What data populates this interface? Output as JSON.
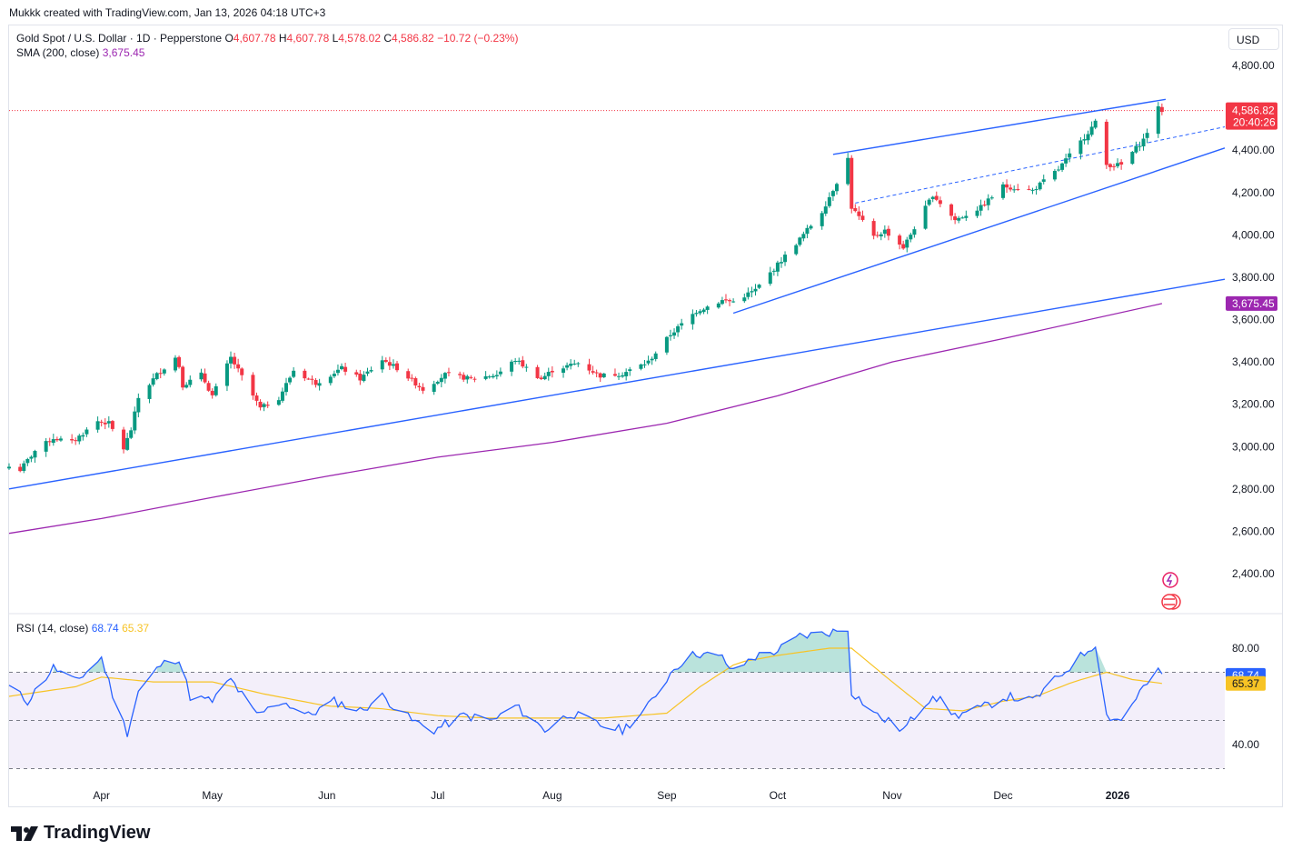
{
  "header": {
    "credit": "Mukkk created with TradingView.com, Jan 13, 2026 04:18 UTC+3"
  },
  "legend": {
    "symbol": "Gold Spot / U.S. Dollar · 1D · Pepperstone",
    "o_key": "O",
    "o_val": "4,607.78",
    "h_key": "H",
    "h_val": "4,607.78",
    "l_key": "L",
    "l_val": "4,578.02",
    "c_key": "C",
    "c_val": "4,586.82",
    "change": "−10.72 (−0.23%)",
    "sma_label": "SMA (200, close)",
    "sma_value": "3,675.45",
    "rsi_label": "RSI (14, close)",
    "rsi_value": "68.74",
    "rsi_ma_value": "65.37"
  },
  "currency": "USD",
  "brand": {
    "name": "TradingView"
  },
  "colors": {
    "up": "#089981",
    "down": "#f23645",
    "trendline": "#2962ff",
    "sma": "#9c27b0",
    "rsi": "#2962ff",
    "rsi_ma": "#f7c325",
    "rsi_band": "#f3effa"
  },
  "chart_data": [
    {
      "type": "candlestick",
      "title": "Gold Spot / U.S. Dollar · 1D · Pepperstone",
      "ylim": [
        2200,
        4900
      ],
      "yticks": [
        2400,
        2600,
        2800,
        3000,
        3200,
        3400,
        3600,
        3800,
        4000,
        4200,
        4400,
        4600,
        4800
      ],
      "ytick_labels": [
        "2,400.00",
        "2,600.00",
        "2,800.00",
        "3,000.00",
        "3,200.00",
        "3,400.00",
        "3,600.00",
        "3,800.00",
        "4,000.00",
        "4,200.00",
        "4,400.00",
        "4,600.00",
        "4,800.00"
      ],
      "x_start": "2025-03-07",
      "x_end": "2026-01-30",
      "x_ticks": [
        {
          "label": "Apr",
          "date": "2025-04-01"
        },
        {
          "label": "May",
          "date": "2025-05-01"
        },
        {
          "label": "Jun",
          "date": "2025-06-01"
        },
        {
          "label": "Jul",
          "date": "2025-07-01"
        },
        {
          "label": "Aug",
          "date": "2025-08-01"
        },
        {
          "label": "Sep",
          "date": "2025-09-01"
        },
        {
          "label": "Oct",
          "date": "2025-10-01"
        },
        {
          "label": "Nov",
          "date": "2025-11-01"
        },
        {
          "label": "Dec",
          "date": "2025-12-01"
        },
        {
          "label": "2026",
          "date": "2026-01-01"
        }
      ],
      "close_path": [
        [
          "2025-03-07",
          2905
        ],
        [
          "2025-03-10",
          2890
        ],
        [
          "2025-03-14",
          2980
        ],
        [
          "2025-03-19",
          3040
        ],
        [
          "2025-03-24",
          3020
        ],
        [
          "2025-03-31",
          3120
        ],
        [
          "2025-04-03",
          3110
        ],
        [
          "2025-04-07",
          2990
        ],
        [
          "2025-04-09",
          3080
        ],
        [
          "2025-04-11",
          3230
        ],
        [
          "2025-04-16",
          3340
        ],
        [
          "2025-04-21",
          3420
        ],
        [
          "2025-04-22",
          3380
        ],
        [
          "2025-04-23",
          3290
        ],
        [
          "2025-04-28",
          3340
        ],
        [
          "2025-05-01",
          3240
        ],
        [
          "2025-05-06",
          3420
        ],
        [
          "2025-05-09",
          3330
        ],
        [
          "2025-05-14",
          3180
        ],
        [
          "2025-05-19",
          3230
        ],
        [
          "2025-05-23",
          3360
        ],
        [
          "2025-05-29",
          3300
        ],
        [
          "2025-06-05",
          3370
        ],
        [
          "2025-06-10",
          3320
        ],
        [
          "2025-06-16",
          3410
        ],
        [
          "2025-06-20",
          3370
        ],
        [
          "2025-06-27",
          3270
        ],
        [
          "2025-07-03",
          3340
        ],
        [
          "2025-07-10",
          3320
        ],
        [
          "2025-07-17",
          3340
        ],
        [
          "2025-07-22",
          3410
        ],
        [
          "2025-07-29",
          3320
        ],
        [
          "2025-08-01",
          3360
        ],
        [
          "2025-08-08",
          3395
        ],
        [
          "2025-08-14",
          3335
        ],
        [
          "2025-08-20",
          3345
        ],
        [
          "2025-08-27",
          3400
        ],
        [
          "2025-09-02",
          3530
        ],
        [
          "2025-09-09",
          3640
        ],
        [
          "2025-09-16",
          3690
        ],
        [
          "2025-09-19",
          3685
        ],
        [
          "2025-09-25",
          3740
        ],
        [
          "2025-10-01",
          3860
        ],
        [
          "2025-10-07",
          3980
        ],
        [
          "2025-10-13",
          4110
        ],
        [
          "2025-10-17",
          4250
        ],
        [
          "2025-10-20",
          4360
        ],
        [
          "2025-10-21",
          4130
        ],
        [
          "2025-10-27",
          3990
        ],
        [
          "2025-10-30",
          4020
        ],
        [
          "2025-11-04",
          3940
        ],
        [
          "2025-11-12",
          4190
        ],
        [
          "2025-11-18",
          4070
        ],
        [
          "2025-11-25",
          4130
        ],
        [
          "2025-12-01",
          4230
        ],
        [
          "2025-12-09",
          4210
        ],
        [
          "2025-12-16",
          4310
        ],
        [
          "2025-12-22",
          4440
        ],
        [
          "2025-12-26",
          4530
        ],
        [
          "2025-12-29",
          4330
        ],
        [
          "2026-01-02",
          4330
        ],
        [
          "2026-01-08",
          4450
        ],
        [
          "2026-01-12",
          4597
        ],
        [
          "2026-01-13",
          4586.82
        ]
      ],
      "last_price": {
        "value": 4586.82,
        "label": "4,586.82",
        "countdown": "20:40:26"
      },
      "sma": {
        "name": "SMA (200, close)",
        "points": [
          [
            "2025-03-07",
            2590
          ],
          [
            "2025-04-01",
            2660
          ],
          [
            "2025-05-01",
            2760
          ],
          [
            "2025-06-01",
            2860
          ],
          [
            "2025-07-01",
            2950
          ],
          [
            "2025-08-01",
            3020
          ],
          [
            "2025-09-01",
            3110
          ],
          [
            "2025-10-01",
            3240
          ],
          [
            "2025-11-01",
            3400
          ],
          [
            "2025-12-01",
            3510
          ],
          [
            "2026-01-13",
            3675.45
          ]
        ],
        "label": "3,675.45"
      },
      "trendlines": [
        {
          "style": "solid",
          "from": [
            "2025-03-07",
            2800
          ],
          "to": [
            "2026-01-30",
            3790
          ]
        },
        {
          "style": "solid",
          "from": [
            "2025-09-19",
            3630
          ],
          "to": [
            "2026-01-30",
            4410
          ]
        },
        {
          "style": "solid",
          "from": [
            "2025-10-16",
            4380
          ],
          "to": [
            "2026-01-14",
            4640
          ]
        },
        {
          "style": "dashed",
          "from": [
            "2025-10-22",
            4150
          ],
          "to": [
            "2026-01-30",
            4510
          ]
        }
      ]
    },
    {
      "type": "line",
      "title": "RSI (14, close)",
      "ylim": [
        30,
        90
      ],
      "yticks": [
        40,
        80
      ],
      "ytick_labels": [
        "40.00",
        "80.00"
      ],
      "bands": {
        "upper": 70,
        "mid": 50,
        "lower": 30
      },
      "series": [
        {
          "name": "RSI",
          "values_path": [
            [
              "2025-03-07",
              64
            ],
            [
              "2025-03-12",
              58
            ],
            [
              "2025-03-19",
              72
            ],
            [
              "2025-03-25",
              66
            ],
            [
              "2025-04-01",
              76
            ],
            [
              "2025-04-05",
              56
            ],
            [
              "2025-04-08",
              45
            ],
            [
              "2025-04-11",
              62
            ],
            [
              "2025-04-17",
              73
            ],
            [
              "2025-04-22",
              76
            ],
            [
              "2025-04-25",
              60
            ],
            [
              "2025-05-01",
              58
            ],
            [
              "2025-05-06",
              67
            ],
            [
              "2025-05-13",
              52
            ],
            [
              "2025-05-20",
              58
            ],
            [
              "2025-05-27",
              52
            ],
            [
              "2025-06-03",
              58
            ],
            [
              "2025-06-10",
              54
            ],
            [
              "2025-06-16",
              60
            ],
            [
              "2025-06-24",
              50
            ],
            [
              "2025-06-30",
              46
            ],
            [
              "2025-07-08",
              52
            ],
            [
              "2025-07-16",
              50
            ],
            [
              "2025-07-22",
              56
            ],
            [
              "2025-07-30",
              46
            ],
            [
              "2025-08-06",
              53
            ],
            [
              "2025-08-14",
              48
            ],
            [
              "2025-08-20",
              46
            ],
            [
              "2025-08-27",
              56
            ],
            [
              "2025-09-03",
              72
            ],
            [
              "2025-09-09",
              78
            ],
            [
              "2025-09-16",
              76
            ],
            [
              "2025-09-19",
              70
            ],
            [
              "2025-09-24",
              76
            ],
            [
              "2025-10-01",
              79
            ],
            [
              "2025-10-07",
              85
            ],
            [
              "2025-10-13",
              86
            ],
            [
              "2025-10-20",
              88
            ],
            [
              "2025-10-21",
              62
            ],
            [
              "2025-10-28",
              52
            ],
            [
              "2025-11-04",
              46
            ],
            [
              "2025-11-12",
              61
            ],
            [
              "2025-11-18",
              52
            ],
            [
              "2025-11-25",
              55
            ],
            [
              "2025-12-02",
              60
            ],
            [
              "2025-12-09",
              58
            ],
            [
              "2025-12-16",
              68
            ],
            [
              "2025-12-23",
              78
            ],
            [
              "2025-12-26",
              82
            ],
            [
              "2025-12-29",
              52
            ],
            [
              "2026-01-02",
              50
            ],
            [
              "2026-01-07",
              62
            ],
            [
              "2026-01-12",
              70
            ],
            [
              "2026-01-13",
              68.74
            ]
          ]
        },
        {
          "name": "RSI MA",
          "values_path": [
            [
              "2025-03-07",
              60
            ],
            [
              "2025-03-25",
              64
            ],
            [
              "2025-04-01",
              68
            ],
            [
              "2025-04-15",
              66
            ],
            [
              "2025-05-01",
              66
            ],
            [
              "2025-05-15",
              61
            ],
            [
              "2025-06-01",
              56
            ],
            [
              "2025-06-15",
              55
            ],
            [
              "2025-07-01",
              52
            ],
            [
              "2025-07-15",
              51
            ],
            [
              "2025-08-01",
              51
            ],
            [
              "2025-08-15",
              51
            ],
            [
              "2025-09-01",
              53
            ],
            [
              "2025-09-10",
              64
            ],
            [
              "2025-09-20",
              74
            ],
            [
              "2025-10-01",
              77
            ],
            [
              "2025-10-15",
              80
            ],
            [
              "2025-10-21",
              80
            ],
            [
              "2025-11-01",
              66
            ],
            [
              "2025-11-10",
              55
            ],
            [
              "2025-11-20",
              54
            ],
            [
              "2025-12-01",
              58
            ],
            [
              "2025-12-10",
              60
            ],
            [
              "2025-12-20",
              66
            ],
            [
              "2025-12-29",
              70
            ],
            [
              "2026-01-05",
              67
            ],
            [
              "2026-01-13",
              65.37
            ]
          ]
        }
      ]
    }
  ]
}
